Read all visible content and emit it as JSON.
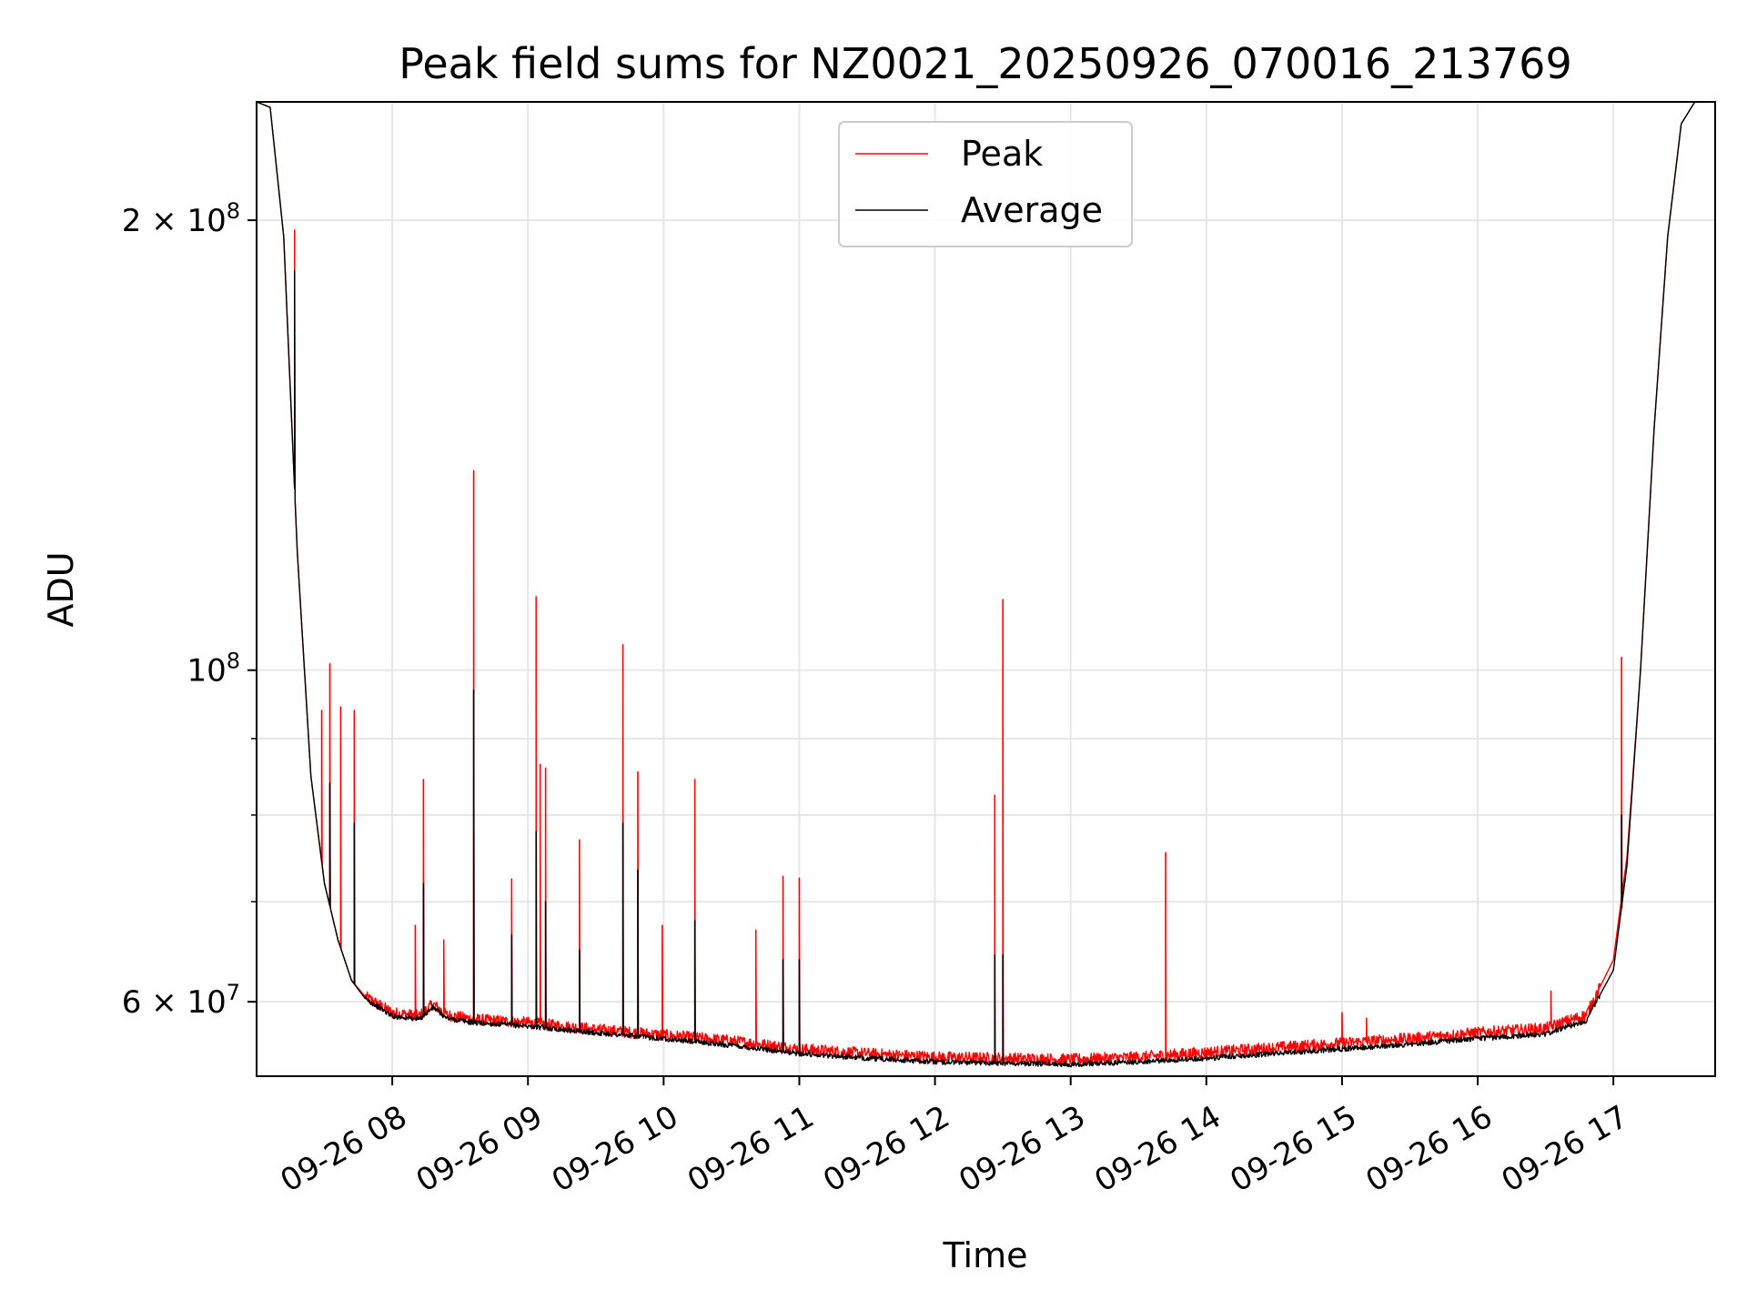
{
  "chart_data": {
    "type": "line",
    "title": "Peak field sums for NZ0021_20250926_070016_213769",
    "xlabel": "Time",
    "ylabel": "ADU",
    "yscale": "log",
    "xlim_hours": [
      7.0,
      17.75
    ],
    "ylim": [
      53500000,
      240000000
    ],
    "grid": true,
    "legend_position": "top-center",
    "x_ticks": [
      {
        "hour": 8,
        "label": "09-26 08"
      },
      {
        "hour": 9,
        "label": "09-26 09"
      },
      {
        "hour": 10,
        "label": "09-26 10"
      },
      {
        "hour": 11,
        "label": "09-26 11"
      },
      {
        "hour": 12,
        "label": "09-26 12"
      },
      {
        "hour": 13,
        "label": "09-26 13"
      },
      {
        "hour": 14,
        "label": "09-26 14"
      },
      {
        "hour": 15,
        "label": "09-26 15"
      },
      {
        "hour": 16,
        "label": "09-26 16"
      },
      {
        "hour": 17,
        "label": "09-26 17"
      }
    ],
    "y_major_ticks": [
      {
        "value": 60000000,
        "mantissa": "6",
        "exponent": "7"
      },
      {
        "value": 100000000,
        "mantissa": "",
        "exponent": "8"
      },
      {
        "value": 200000000,
        "mantissa": "2",
        "exponent": "8"
      }
    ],
    "y_minor_ticks": [
      70000000,
      80000000,
      90000000
    ],
    "series": [
      {
        "name": "Peak",
        "color": "#ff0000",
        "baseline_hours": [
          7.0,
          7.1,
          7.2,
          7.3,
          7.4,
          7.5,
          7.6,
          7.7,
          7.8,
          8.0,
          8.2,
          8.3,
          8.4,
          8.6,
          9.0,
          9.5,
          10.0,
          10.5,
          11.0,
          11.5,
          12.0,
          12.5,
          13.0,
          13.5,
          14.0,
          14.5,
          15.0,
          15.5,
          16.0,
          16.5,
          16.8,
          17.0,
          17.1,
          17.2,
          17.3,
          17.4,
          17.5,
          17.6,
          17.75
        ],
        "baseline_values": [
          240000000,
          238000000,
          195000000,
          120000000,
          85000000,
          72000000,
          66000000,
          62000000,
          60500000,
          59000000,
          58700000,
          59800000,
          58800000,
          58400000,
          58100000,
          57500000,
          57000000,
          56500000,
          55800000,
          55400000,
          55100000,
          55000000,
          54900000,
          55100000,
          55500000,
          55900000,
          56300000,
          56700000,
          57200000,
          57600000,
          58800000,
          64000000,
          75000000,
          100000000,
          145000000,
          195000000,
          232000000,
          240000000,
          240000000
        ],
        "spikes": [
          {
            "hour": 7.28,
            "value": 197000000
          },
          {
            "hour": 7.48,
            "value": 94000000
          },
          {
            "hour": 7.54,
            "value": 101000000
          },
          {
            "hour": 7.62,
            "value": 94500000
          },
          {
            "hour": 7.72,
            "value": 94000000
          },
          {
            "hour": 8.17,
            "value": 67500000
          },
          {
            "hour": 8.23,
            "value": 84500000
          },
          {
            "hour": 8.38,
            "value": 66000000
          },
          {
            "hour": 8.6,
            "value": 136000000
          },
          {
            "hour": 8.88,
            "value": 72500000
          },
          {
            "hour": 9.06,
            "value": 112000000
          },
          {
            "hour": 9.09,
            "value": 86500000
          },
          {
            "hour": 9.13,
            "value": 86000000
          },
          {
            "hour": 9.38,
            "value": 77000000
          },
          {
            "hour": 9.7,
            "value": 104000000
          },
          {
            "hour": 9.81,
            "value": 85500000
          },
          {
            "hour": 9.99,
            "value": 67500000
          },
          {
            "hour": 10.23,
            "value": 84500000
          },
          {
            "hour": 10.68,
            "value": 67000000
          },
          {
            "hour": 10.88,
            "value": 72800000
          },
          {
            "hour": 11.0,
            "value": 72600000
          },
          {
            "hour": 12.44,
            "value": 82500000
          },
          {
            "hour": 12.5,
            "value": 111500000
          },
          {
            "hour": 13.7,
            "value": 75500000
          },
          {
            "hour": 15.0,
            "value": 59000000
          },
          {
            "hour": 15.18,
            "value": 58500000
          },
          {
            "hour": 16.54,
            "value": 61000000
          },
          {
            "hour": 17.06,
            "value": 102000000
          }
        ]
      },
      {
        "name": "Average",
        "color": "#000000",
        "baseline_hours": [
          7.0,
          7.1,
          7.2,
          7.3,
          7.4,
          7.5,
          7.6,
          7.7,
          7.8,
          8.0,
          8.2,
          8.3,
          8.4,
          8.6,
          9.0,
          9.5,
          10.0,
          10.5,
          11.0,
          11.5,
          12.0,
          12.5,
          13.0,
          13.5,
          14.0,
          14.5,
          15.0,
          15.5,
          16.0,
          16.5,
          16.8,
          17.0,
          17.1,
          17.2,
          17.3,
          17.4,
          17.5,
          17.6,
          17.75
        ],
        "baseline_values": [
          240000000,
          238000000,
          195000000,
          120000000,
          85000000,
          72000000,
          66000000,
          62000000,
          60300000,
          58700000,
          58400000,
          59500000,
          58500000,
          58100000,
          57800000,
          57200000,
          56700000,
          56100000,
          55400000,
          55000000,
          54700000,
          54600000,
          54500000,
          54700000,
          55000000,
          55400000,
          55800000,
          56200000,
          56700000,
          57100000,
          58300000,
          63000000,
          74000000,
          100000000,
          145000000,
          195000000,
          232000000,
          240000000,
          240000000
        ],
        "spikes": [
          {
            "hour": 7.28,
            "value": 185000000
          },
          {
            "hour": 7.54,
            "value": 84000000
          },
          {
            "hour": 7.72,
            "value": 79000000
          },
          {
            "hour": 8.23,
            "value": 72000000
          },
          {
            "hour": 8.6,
            "value": 97000000
          },
          {
            "hour": 8.88,
            "value": 66500000
          },
          {
            "hour": 9.06,
            "value": 78000000
          },
          {
            "hour": 9.13,
            "value": 70000000
          },
          {
            "hour": 9.38,
            "value": 65000000
          },
          {
            "hour": 9.7,
            "value": 79000000
          },
          {
            "hour": 9.81,
            "value": 73500000
          },
          {
            "hour": 10.23,
            "value": 68000000
          },
          {
            "hour": 10.88,
            "value": 64000000
          },
          {
            "hour": 11.0,
            "value": 64000000
          },
          {
            "hour": 12.44,
            "value": 64500000
          },
          {
            "hour": 12.5,
            "value": 64500000
          },
          {
            "hour": 17.06,
            "value": 80000000
          }
        ]
      }
    ]
  }
}
